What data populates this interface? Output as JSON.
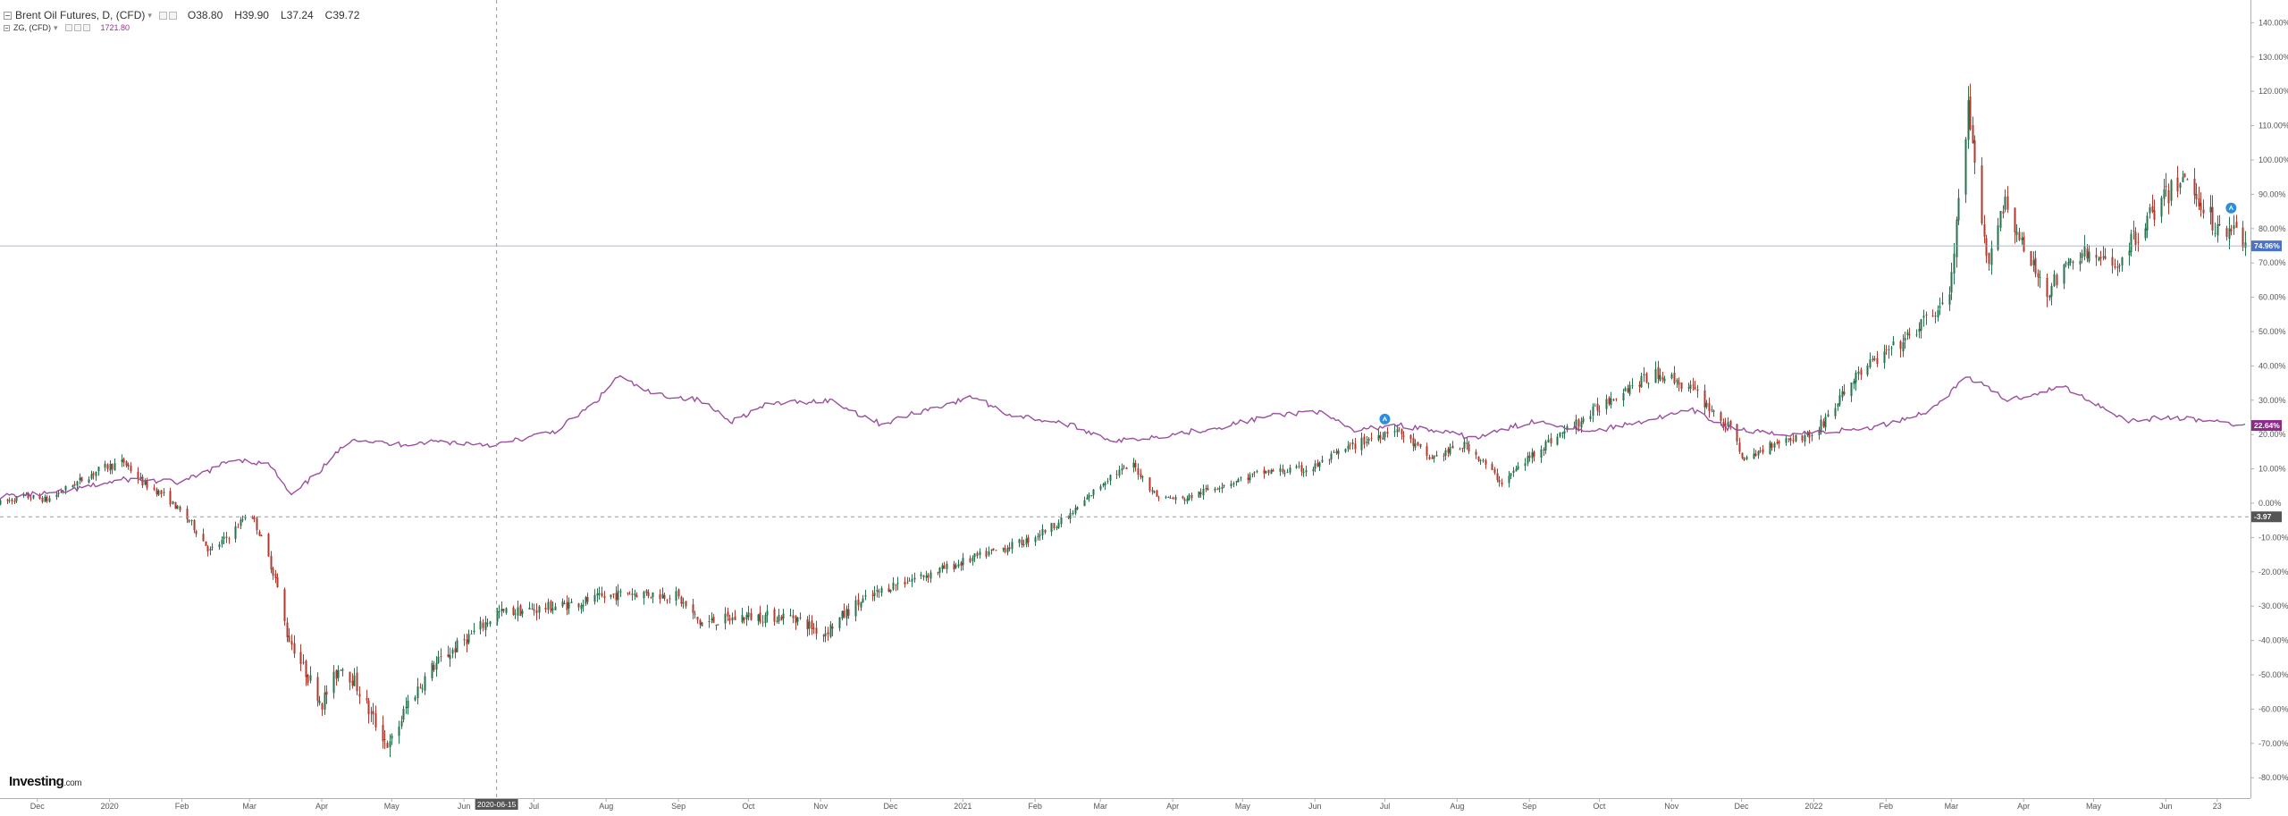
{
  "legend": {
    "main_title": "Brent Oil Futures, D, (CFD)",
    "open": "O38.80",
    "high": "H39.90",
    "low": "L37.24",
    "close": "C39.72",
    "second_title": "ZG, (CFD)",
    "second_value": "1721.80"
  },
  "logo": {
    "text": "Investing",
    "suffix": ".com"
  },
  "crosshair": {
    "date_label": "2020-06-15",
    "value_label": "-3.97",
    "value": -3.97
  },
  "last_values": {
    "brent": {
      "label": "74.96%",
      "value": 74.96
    },
    "gold": {
      "label": "22.64%",
      "value": 22.64
    }
  },
  "colors": {
    "up_candle": "#26734d",
    "down_candle": "#b03a2e",
    "gold_line": "#9b4f9e",
    "brent_badge": "#4a72c9",
    "gold_badge": "#8e2a8a",
    "crosshair_badge": "#555555",
    "axis_text": "#555555",
    "grid": "#e6e6e6",
    "flag": "#2a8fe0"
  },
  "chart_data": {
    "type": "line",
    "xlabel": "",
    "ylabel": "",
    "ylim": [
      -83,
      146
    ],
    "x_range": [
      "2019-11-15",
      "2022-07-05"
    ],
    "grid": false,
    "legend_position": "top-left",
    "y_ticks": [
      "140.00%",
      "130.00%",
      "120.00%",
      "110.00%",
      "100.00%",
      "90.00%",
      "80.00%",
      "70.00%",
      "60.00%",
      "50.00%",
      "40.00%",
      "30.00%",
      "20.00%",
      "10.00%",
      "0.00%",
      "-10.00%",
      "-20.00%",
      "-30.00%",
      "-40.00%",
      "-50.00%",
      "-60.00%",
      "-70.00%",
      "-80.00%"
    ],
    "y_tick_values": [
      140,
      130,
      120,
      110,
      100,
      90,
      80,
      70,
      60,
      50,
      40,
      30,
      20,
      10,
      0,
      -10,
      -20,
      -30,
      -40,
      -50,
      -60,
      -70,
      -80
    ],
    "x_ticks": [
      {
        "date": "2019-12-01",
        "label": "Dec"
      },
      {
        "date": "2020-01-01",
        "label": "2020"
      },
      {
        "date": "2020-02-01",
        "label": "Feb"
      },
      {
        "date": "2020-03-01",
        "label": "Mar"
      },
      {
        "date": "2020-04-01",
        "label": "Apr"
      },
      {
        "date": "2020-05-01",
        "label": "May"
      },
      {
        "date": "2020-06-01",
        "label": "Jun"
      },
      {
        "date": "2020-07-01",
        "label": "Jul"
      },
      {
        "date": "2020-08-01",
        "label": "Aug"
      },
      {
        "date": "2020-09-01",
        "label": "Sep"
      },
      {
        "date": "2020-10-01",
        "label": "Oct"
      },
      {
        "date": "2020-11-01",
        "label": "Nov"
      },
      {
        "date": "2020-12-01",
        "label": "Dec"
      },
      {
        "date": "2021-01-01",
        "label": "2021"
      },
      {
        "date": "2021-02-01",
        "label": "Feb"
      },
      {
        "date": "2021-03-01",
        "label": "Mar"
      },
      {
        "date": "2021-04-01",
        "label": "Apr"
      },
      {
        "date": "2021-05-01",
        "label": "May"
      },
      {
        "date": "2021-06-01",
        "label": "Jun"
      },
      {
        "date": "2021-07-01",
        "label": "Jul"
      },
      {
        "date": "2021-08-01",
        "label": "Aug"
      },
      {
        "date": "2021-09-01",
        "label": "Sep"
      },
      {
        "date": "2021-10-01",
        "label": "Oct"
      },
      {
        "date": "2021-11-01",
        "label": "Nov"
      },
      {
        "date": "2021-12-01",
        "label": "Dec"
      },
      {
        "date": "2022-01-01",
        "label": "2022"
      },
      {
        "date": "2022-02-01",
        "label": "Feb"
      },
      {
        "date": "2022-03-01",
        "label": "Mar"
      },
      {
        "date": "2022-04-01",
        "label": "Apr"
      },
      {
        "date": "2022-05-01",
        "label": "May"
      },
      {
        "date": "2022-06-01",
        "label": "Jun"
      },
      {
        "date": "2022-06-23",
        "label": "23"
      }
    ],
    "series": [
      {
        "name": "Brent Oil Futures, D, (CFD)",
        "style": "candlestick",
        "points": [
          [
            "2019-11-15",
            0
          ],
          [
            "2019-11-25",
            2
          ],
          [
            "2019-12-05",
            1
          ],
          [
            "2019-12-15",
            5
          ],
          [
            "2019-12-28",
            10
          ],
          [
            "2020-01-07",
            12
          ],
          [
            "2020-01-15",
            6
          ],
          [
            "2020-01-25",
            2
          ],
          [
            "2020-02-05",
            -6
          ],
          [
            "2020-02-13",
            -14
          ],
          [
            "2020-02-22",
            -9
          ],
          [
            "2020-03-01",
            -2
          ],
          [
            "2020-03-07",
            -12
          ],
          [
            "2020-03-12",
            -22
          ],
          [
            "2020-03-17",
            -38
          ],
          [
            "2020-03-24",
            -48
          ],
          [
            "2020-04-01",
            -58
          ],
          [
            "2020-04-09",
            -47
          ],
          [
            "2020-04-15",
            -52
          ],
          [
            "2020-04-22",
            -62
          ],
          [
            "2020-04-30",
            -71
          ],
          [
            "2020-05-08",
            -58
          ],
          [
            "2020-05-18",
            -48
          ],
          [
            "2020-06-01",
            -40
          ],
          [
            "2020-06-15",
            -32
          ],
          [
            "2020-07-01",
            -31
          ],
          [
            "2020-07-20",
            -29
          ],
          [
            "2020-08-10",
            -26
          ],
          [
            "2020-08-31",
            -27
          ],
          [
            "2020-09-10",
            -35
          ],
          [
            "2020-09-30",
            -33
          ],
          [
            "2020-10-20",
            -33
          ],
          [
            "2020-11-02",
            -38
          ],
          [
            "2020-11-15",
            -30
          ],
          [
            "2020-12-01",
            -24
          ],
          [
            "2020-12-20",
            -20
          ],
          [
            "2021-01-10",
            -15
          ],
          [
            "2021-01-28",
            -11
          ],
          [
            "2021-02-15",
            -4
          ],
          [
            "2021-03-05",
            8
          ],
          [
            "2021-03-15",
            11
          ],
          [
            "2021-03-25",
            2
          ],
          [
            "2021-04-05",
            1
          ],
          [
            "2021-04-20",
            5
          ],
          [
            "2021-05-10",
            9
          ],
          [
            "2021-05-30",
            10
          ],
          [
            "2021-06-15",
            16
          ],
          [
            "2021-07-05",
            22
          ],
          [
            "2021-07-20",
            13
          ],
          [
            "2021-08-05",
            17
          ],
          [
            "2021-08-20",
            6
          ],
          [
            "2021-09-05",
            16
          ],
          [
            "2021-09-25",
            25
          ],
          [
            "2021-10-10",
            33
          ],
          [
            "2021-10-27",
            38
          ],
          [
            "2021-11-10",
            33
          ],
          [
            "2021-11-28",
            20
          ],
          [
            "2021-12-02",
            12
          ],
          [
            "2021-12-15",
            18
          ],
          [
            "2022-01-01",
            20
          ],
          [
            "2022-01-20",
            38
          ],
          [
            "2022-02-10",
            48
          ],
          [
            "2022-02-28",
            60
          ],
          [
            "2022-03-08",
            114
          ],
          [
            "2022-03-16",
            70
          ],
          [
            "2022-03-24",
            89
          ],
          [
            "2022-04-01",
            73
          ],
          [
            "2022-04-11",
            62
          ],
          [
            "2022-04-25",
            73
          ],
          [
            "2022-05-10",
            69
          ],
          [
            "2022-05-25",
            84
          ],
          [
            "2022-06-08",
            95
          ],
          [
            "2022-06-16",
            88
          ],
          [
            "2022-06-24",
            79
          ],
          [
            "2022-07-01",
            82
          ],
          [
            "2022-07-05",
            75
          ]
        ]
      },
      {
        "name": "ZG, (CFD)",
        "style": "line",
        "points": [
          [
            "2019-11-15",
            2
          ],
          [
            "2019-12-10",
            3
          ],
          [
            "2020-01-08",
            7
          ],
          [
            "2020-02-01",
            6
          ],
          [
            "2020-02-24",
            13
          ],
          [
            "2020-03-10",
            11
          ],
          [
            "2020-03-19",
            2
          ],
          [
            "2020-04-01",
            10
          ],
          [
            "2020-04-14",
            19
          ],
          [
            "2020-05-01",
            17
          ],
          [
            "2020-05-20",
            18
          ],
          [
            "2020-06-15",
            17
          ],
          [
            "2020-07-10",
            21
          ],
          [
            "2020-07-27",
            29
          ],
          [
            "2020-08-06",
            37
          ],
          [
            "2020-08-20",
            32
          ],
          [
            "2020-09-10",
            30
          ],
          [
            "2020-09-24",
            24
          ],
          [
            "2020-10-10",
            29
          ],
          [
            "2020-11-05",
            30
          ],
          [
            "2020-11-27",
            23
          ],
          [
            "2020-12-15",
            27
          ],
          [
            "2021-01-06",
            31
          ],
          [
            "2021-01-20",
            26
          ],
          [
            "2021-02-15",
            23
          ],
          [
            "2021-03-08",
            18
          ],
          [
            "2021-03-31",
            20
          ],
          [
            "2021-04-20",
            22
          ],
          [
            "2021-05-10",
            25
          ],
          [
            "2021-06-01",
            27
          ],
          [
            "2021-06-18",
            21
          ],
          [
            "2021-07-05",
            23
          ],
          [
            "2021-08-09",
            19
          ],
          [
            "2021-09-03",
            24
          ],
          [
            "2021-09-29",
            21
          ],
          [
            "2021-11-10",
            27
          ],
          [
            "2021-11-25",
            22
          ],
          [
            "2021-12-15",
            20
          ],
          [
            "2022-01-10",
            21
          ],
          [
            "2022-01-27",
            22
          ],
          [
            "2022-02-20",
            27
          ],
          [
            "2022-03-08",
            37
          ],
          [
            "2022-03-25",
            30
          ],
          [
            "2022-04-18",
            34
          ],
          [
            "2022-05-16",
            24
          ],
          [
            "2022-06-01",
            25
          ],
          [
            "2022-06-20",
            24
          ],
          [
            "2022-07-05",
            22.6
          ]
        ]
      }
    ]
  }
}
